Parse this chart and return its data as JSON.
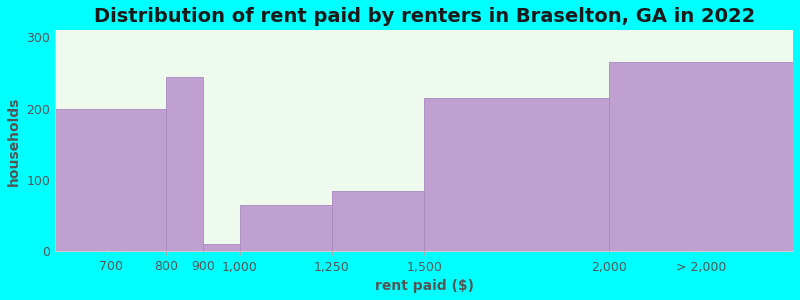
{
  "title": "Distribution of rent paid by renters in Braselton, GA in 2022",
  "xlabel": "rent paid ($)",
  "ylabel": "households",
  "boundaries": [
    500,
    800,
    900,
    1000,
    1250,
    1500,
    2000,
    2500
  ],
  "bar_heights": [
    200,
    245,
    10,
    65,
    85,
    215,
    265
  ],
  "bar_color": "#c0a0d0",
  "bar_edgecolor": "#a888be",
  "plot_bg_color": "#eefaee",
  "fig_bg_color": "#00ffff",
  "title_fontsize": 14,
  "label_fontsize": 10,
  "tick_fontsize": 9,
  "ylim": [
    0,
    310
  ],
  "yticks": [
    0,
    100,
    200,
    300
  ],
  "xtick_positions": [
    650,
    800,
    900,
    1000,
    1250,
    1500,
    2000,
    2250
  ],
  "xtick_labels": [
    "700",
    "800",
    "900",
    "1,000",
    "1,250",
    "1,500",
    "2,000",
    "> 2,000"
  ],
  "xlim": [
    500,
    2500
  ]
}
